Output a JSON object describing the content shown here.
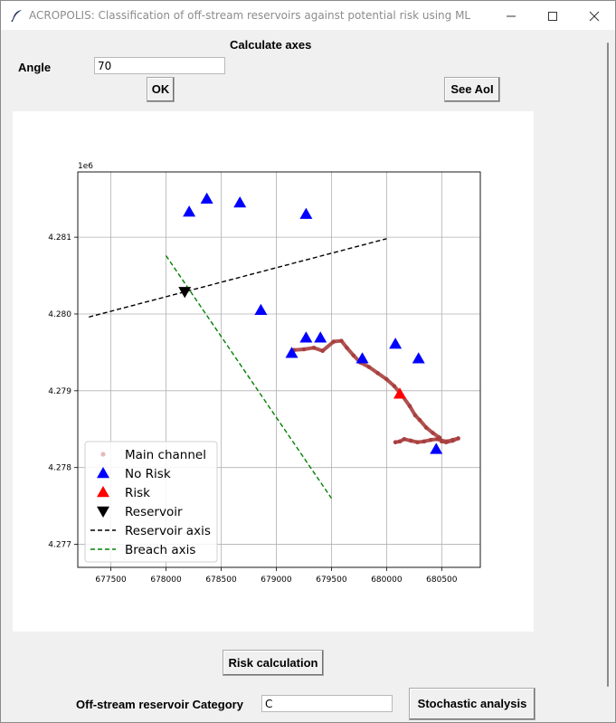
{
  "window": {
    "title": "ACROPOLIS: Classification of off-stream reservoirs against potential risk using ML",
    "icon": "feather-icon",
    "controls": [
      "minimize-icon",
      "maximize-icon",
      "close-icon"
    ]
  },
  "header": {
    "title": "Calculate axes"
  },
  "angle": {
    "label": "Angle",
    "value": "70"
  },
  "buttons": {
    "ok": "OK",
    "see_aoi": "See AoI",
    "risk": "Risk calculation",
    "stochastic": "Stochastic analysis"
  },
  "category": {
    "label": "Off-stream reservoir Category",
    "value": "C"
  },
  "chart_data": {
    "type": "scatter",
    "offset_label": "1e6",
    "xlim": [
      677200,
      680850
    ],
    "ylim": [
      4276700,
      4281850
    ],
    "x_ticks": [
      677500,
      678000,
      678500,
      679000,
      679500,
      680000,
      680500
    ],
    "x_tick_labels": [
      "677500",
      "678000",
      "678500",
      "679000",
      "679500",
      "680000",
      "680500"
    ],
    "y_ticks": [
      4277000,
      4278000,
      4279000,
      4280000,
      4281000
    ],
    "y_tick_labels": [
      "4.277",
      "4.278",
      "4.279",
      "4.280",
      "4.281"
    ],
    "grid": true,
    "legend_position": "lower-left",
    "series": [
      {
        "name": "Main channel",
        "kind": "points",
        "color": "#a83e3e",
        "x": [
          679160,
          679250,
          679340,
          679420,
          679520,
          679590,
          679640,
          679700,
          679760,
          679840,
          679920,
          680000,
          680070,
          680140,
          680210,
          680260,
          680300,
          680360,
          680420,
          680480,
          680500,
          680540,
          680600,
          680650,
          680600,
          680550,
          680500,
          680460,
          680400,
          680340,
          680280,
          680220,
          680160,
          680120,
          680080
        ],
        "y": [
          4279530,
          4279540,
          4279560,
          4279520,
          4279640,
          4279650,
          4279560,
          4279460,
          4279370,
          4279310,
          4279230,
          4279150,
          4279060,
          4278940,
          4278800,
          4278680,
          4278620,
          4278520,
          4278450,
          4278390,
          4278340,
          4278330,
          4278350,
          4278380,
          4278360,
          4278340,
          4278350,
          4278370,
          4278360,
          4278340,
          4278330,
          4278350,
          4278370,
          4278340,
          4278330
        ]
      },
      {
        "name": "No Risk",
        "kind": "marker",
        "marker": "triangle-up",
        "color": "#0000ff",
        "x": [
          678210,
          678370,
          678670,
          679270,
          678860,
          679140,
          679270,
          679400,
          679780,
          680080,
          680290,
          680450
        ],
        "y": [
          4281330,
          4281500,
          4281450,
          4281300,
          4280050,
          4279490,
          4279690,
          4279690,
          4279420,
          4279610,
          4279420,
          4278240
        ]
      },
      {
        "name": "Risk",
        "kind": "marker",
        "marker": "triangle-up",
        "color": "#ff0000",
        "x": [
          680120
        ],
        "y": [
          4278960
        ]
      },
      {
        "name": "Reservoir",
        "kind": "marker",
        "marker": "triangle-down",
        "color": "#000000",
        "x": [
          678170
        ],
        "y": [
          4280290
        ]
      },
      {
        "name": "Reservoir axis",
        "kind": "dashed-line",
        "color": "#000000",
        "x": [
          677300,
          680000
        ],
        "y": [
          4279960,
          4280980
        ]
      },
      {
        "name": "Breach axis",
        "kind": "dashed-line",
        "color": "#008000",
        "x": [
          678000,
          679500
        ],
        "y": [
          4280760,
          4277600
        ]
      }
    ]
  }
}
